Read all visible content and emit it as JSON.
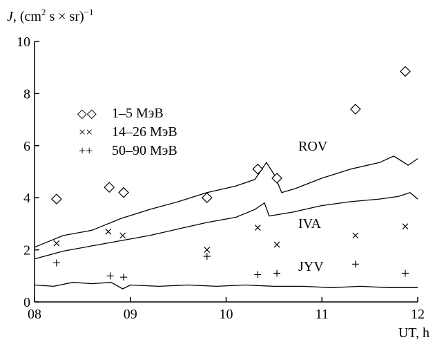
{
  "chart_data": {
    "type": "scatter",
    "ylabel_parts": {
      "symbol": "J",
      "rest": ", (cm",
      "sq": "2",
      "mid": " s × sr)",
      "exp": "−1"
    },
    "xlabel": "UT, h",
    "xlim": [
      8,
      12
    ],
    "ylim": [
      0,
      10
    ],
    "x_ticks": [
      8,
      9,
      10,
      11,
      12
    ],
    "x_tick_labels": [
      "08",
      "09",
      "10",
      "11",
      "12"
    ],
    "y_ticks": [
      0,
      2,
      4,
      6,
      8,
      10
    ],
    "y_tick_labels": [
      "0",
      "2",
      "4",
      "6",
      "8",
      "10"
    ],
    "grid": false,
    "legend_position": "top-left",
    "series": [
      {
        "name": "1–5 МэВ",
        "marker": "diamond",
        "legend_glyph": "◇◇",
        "points": [
          [
            8.23,
            3.95
          ],
          [
            8.78,
            4.4
          ],
          [
            8.93,
            4.2
          ],
          [
            9.8,
            4.0
          ],
          [
            10.33,
            5.1
          ],
          [
            10.53,
            4.75
          ],
          [
            11.35,
            7.4
          ],
          [
            11.87,
            8.85
          ]
        ]
      },
      {
        "name": "14–26 МэВ",
        "marker": "x",
        "legend_glyph": "××",
        "points": [
          [
            8.23,
            2.25
          ],
          [
            8.77,
            2.7
          ],
          [
            8.92,
            2.55
          ],
          [
            9.8,
            2.0
          ],
          [
            10.33,
            2.85
          ],
          [
            10.53,
            2.2
          ],
          [
            11.35,
            2.55
          ],
          [
            11.87,
            2.9
          ]
        ]
      },
      {
        "name": "50–90 МэВ",
        "marker": "plus",
        "legend_glyph": "++",
        "points": [
          [
            8.23,
            1.5
          ],
          [
            8.79,
            1.0
          ],
          [
            8.93,
            0.95
          ],
          [
            9.8,
            1.75
          ],
          [
            10.33,
            1.05
          ],
          [
            10.53,
            1.1
          ],
          [
            11.35,
            1.45
          ],
          [
            11.87,
            1.1
          ]
        ]
      }
    ],
    "lines": [
      {
        "name": "ROV",
        "points": [
          [
            8.0,
            2.1
          ],
          [
            8.3,
            2.55
          ],
          [
            8.6,
            2.75
          ],
          [
            8.9,
            3.2
          ],
          [
            9.2,
            3.55
          ],
          [
            9.5,
            3.85
          ],
          [
            9.8,
            4.2
          ],
          [
            10.1,
            4.45
          ],
          [
            10.3,
            4.7
          ],
          [
            10.42,
            5.35
          ],
          [
            10.5,
            4.9
          ],
          [
            10.58,
            4.2
          ],
          [
            10.72,
            4.35
          ],
          [
            11.0,
            4.75
          ],
          [
            11.3,
            5.1
          ],
          [
            11.6,
            5.35
          ],
          [
            11.75,
            5.6
          ],
          [
            11.9,
            5.25
          ],
          [
            12.0,
            5.5
          ]
        ]
      },
      {
        "name": "IVA",
        "points": [
          [
            8.0,
            1.65
          ],
          [
            8.3,
            1.95
          ],
          [
            8.6,
            2.15
          ],
          [
            8.9,
            2.35
          ],
          [
            9.2,
            2.55
          ],
          [
            9.5,
            2.8
          ],
          [
            9.8,
            3.05
          ],
          [
            10.1,
            3.25
          ],
          [
            10.3,
            3.55
          ],
          [
            10.4,
            3.8
          ],
          [
            10.45,
            3.3
          ],
          [
            10.7,
            3.45
          ],
          [
            11.0,
            3.7
          ],
          [
            11.3,
            3.85
          ],
          [
            11.6,
            3.95
          ],
          [
            11.8,
            4.05
          ],
          [
            11.92,
            4.2
          ],
          [
            12.0,
            3.95
          ]
        ]
      },
      {
        "name": "JYV",
        "points": [
          [
            8.0,
            0.65
          ],
          [
            8.2,
            0.6
          ],
          [
            8.4,
            0.75
          ],
          [
            8.6,
            0.7
          ],
          [
            8.8,
            0.75
          ],
          [
            8.92,
            0.5
          ],
          [
            9.0,
            0.65
          ],
          [
            9.3,
            0.6
          ],
          [
            9.6,
            0.65
          ],
          [
            9.9,
            0.6
          ],
          [
            10.2,
            0.65
          ],
          [
            10.5,
            0.6
          ],
          [
            10.8,
            0.6
          ],
          [
            11.1,
            0.55
          ],
          [
            11.4,
            0.6
          ],
          [
            11.7,
            0.55
          ],
          [
            12.0,
            0.55
          ]
        ]
      }
    ]
  }
}
